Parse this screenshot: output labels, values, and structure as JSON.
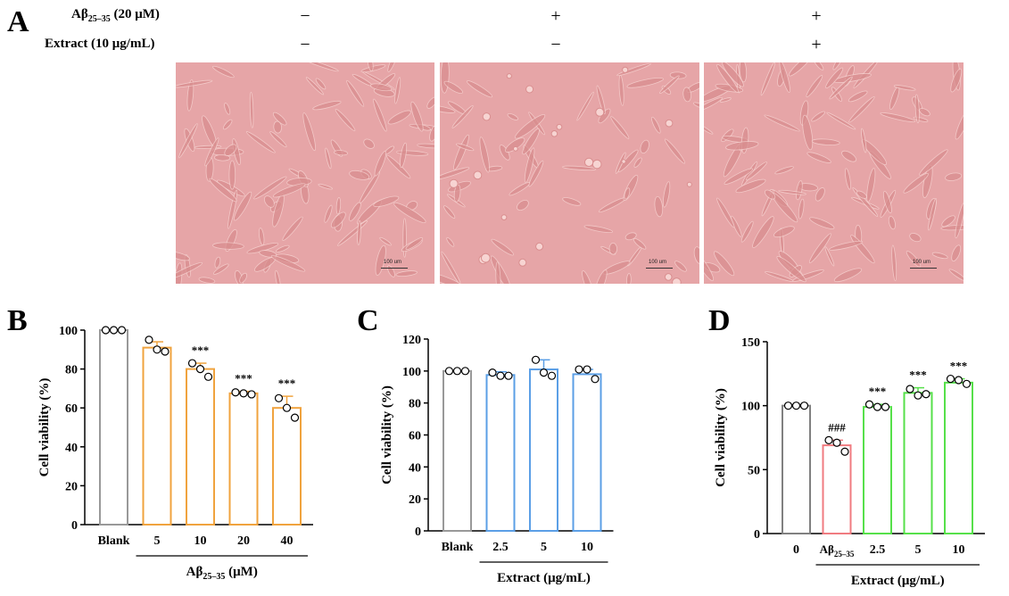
{
  "panel_a": {
    "letter": "A",
    "row1": {
      "label_main": "Aβ",
      "label_sub": "25–35",
      "label_tail": " (20 μM)",
      "signs": [
        "−",
        "+",
        "+"
      ]
    },
    "row2": {
      "label": "Extract (10 μg/mL)",
      "signs": [
        "−",
        "−",
        "+"
      ]
    },
    "scale_label": "100 um",
    "colors": {
      "background": "#e6a5a7",
      "cells": "#d98e8f",
      "cell_edges": "#f7d4d2"
    }
  },
  "chart_data": [
    {
      "panel": "B",
      "type": "bar",
      "categories": [
        "Blank",
        "5",
        "10",
        "20",
        "40"
      ],
      "values": [
        100,
        91,
        80,
        67.5,
        60
      ],
      "errors": [
        0,
        3,
        3,
        1,
        6
      ],
      "points": [
        [
          100,
          100,
          100
        ],
        [
          95,
          90,
          89
        ],
        [
          83,
          80,
          76
        ],
        [
          68,
          67.5,
          67
        ],
        [
          65,
          60,
          55
        ]
      ],
      "annotations": [
        "",
        "",
        "***",
        "***",
        "***"
      ],
      "colors": [
        "#999999",
        "#f0a33e",
        "#f0a33e",
        "#f0a33e",
        "#f0a33e"
      ],
      "ylabel": "Cell viability (%)",
      "group_label_main": "Aβ",
      "group_label_sub": "25–35",
      "group_label_tail": " (μM)",
      "group_span": [
        1,
        4
      ],
      "ylim": [
        0,
        100
      ],
      "yticks": [
        0,
        20,
        40,
        60,
        80,
        100
      ]
    },
    {
      "panel": "C",
      "type": "bar",
      "categories": [
        "Blank",
        "2.5",
        "5",
        "10"
      ],
      "values": [
        100,
        97.5,
        101,
        98
      ],
      "errors": [
        0,
        2,
        6,
        3
      ],
      "points": [
        [
          100,
          100,
          100
        ],
        [
          99,
          97,
          97
        ],
        [
          107,
          99,
          97
        ],
        [
          101,
          101,
          95
        ]
      ],
      "annotations": [
        "",
        "",
        "",
        ""
      ],
      "colors": [
        "#999999",
        "#5b9fe6",
        "#5b9fe6",
        "#5b9fe6"
      ],
      "ylabel": "Cell viability (%)",
      "group_label_main": "Extract (μg/mL)",
      "group_label_sub": "",
      "group_label_tail": "",
      "group_span": [
        1,
        3
      ],
      "ylim": [
        0,
        120
      ],
      "yticks": [
        0,
        20,
        40,
        60,
        80,
        100,
        120
      ]
    },
    {
      "panel": "D",
      "type": "bar",
      "categories": [
        "0",
        "Aβ25–35",
        "2.5",
        "5",
        "10"
      ],
      "category_sub": [
        null,
        {
          "main": "Aβ",
          "sub": "25–35"
        },
        null,
        null,
        null
      ],
      "values": [
        100,
        69,
        99,
        110,
        118
      ],
      "errors": [
        0,
        4,
        2,
        4,
        3
      ],
      "points": [
        [
          100,
          100,
          100
        ],
        [
          73,
          71,
          64
        ],
        [
          101,
          99,
          99
        ],
        [
          113,
          108,
          109
        ],
        [
          121,
          120,
          117
        ]
      ],
      "annotations": [
        "",
        "###",
        "***",
        "***",
        "***"
      ],
      "colors": [
        "#808080",
        "#f07b80",
        "#56e04a",
        "#56e04a",
        "#56e04a"
      ],
      "ylabel": "Cell viability (%)",
      "group_label_main": "Extract (μg/mL)",
      "group_label_sub": "",
      "group_label_tail": "",
      "group_span": [
        1,
        4
      ],
      "ylim": [
        0,
        150
      ],
      "yticks": [
        0,
        50,
        100,
        150
      ]
    }
  ]
}
